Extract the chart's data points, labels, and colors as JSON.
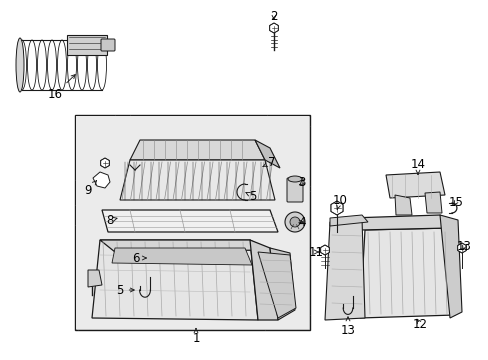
{
  "bg_color": "#ffffff",
  "box_bg": "#e8e8e8",
  "line_color": "#1a1a1a",
  "label_color": "#000000",
  "fig_width": 4.89,
  "fig_height": 3.6,
  "dpi": 100
}
